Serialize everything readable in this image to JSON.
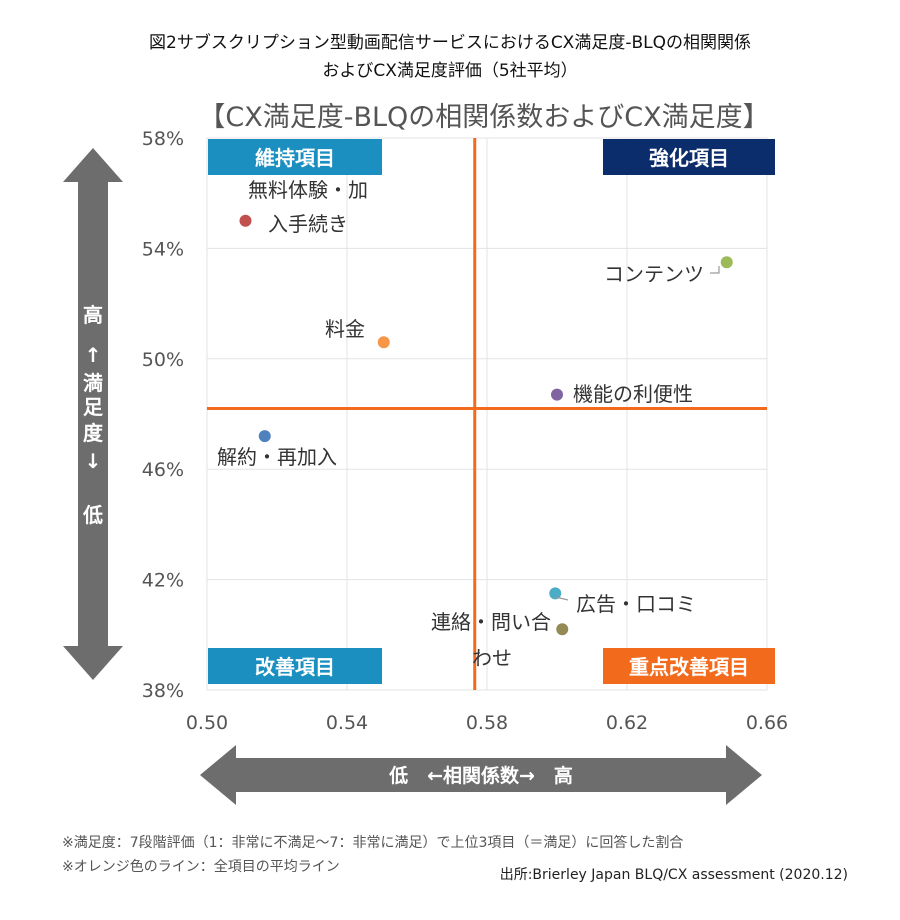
{
  "figure": {
    "title_line1": "図2サブスクリプション型動画配信サービスにおけるCX満足度-BLQの相関関係",
    "title_line2": "およびCX満足度評価（5社平均）",
    "note1": "※満足度：7段階評価（1：非常に不満足～7：非常に満足）で上位3項目（＝満足）に回答した割合",
    "note2": "※オレンジ色のライン：全項目の平均ライン",
    "source": "出所:Brierley Japan BLQ/CX assessment (2020.12)"
  },
  "colors": {
    "axis_arrow": "#6d6d6d",
    "avg_line": "#f26b1d",
    "quad_maintain": "#1b8fc0",
    "quad_strengthen": "#0c2d6b",
    "quad_improve": "#1b8fc0",
    "quad_priority": "#f26b1d",
    "grid": "#e3e3e3"
  },
  "chart_data": {
    "type": "scatter",
    "title": "【CX満足度-BLQの相関係数およびCX満足度】",
    "xlabel": "低　←相関係数→　高",
    "ylabel_chars": [
      "高",
      "↑",
      "満",
      "足",
      "度",
      "↓",
      "",
      "低"
    ],
    "xlim": [
      0.5,
      0.66
    ],
    "ylim": [
      38,
      58
    ],
    "x_ticks": [
      0.5,
      0.54,
      0.58,
      0.62,
      0.66
    ],
    "x_tick_labels": [
      "0.50",
      "0.54",
      "0.58",
      "0.62",
      "0.66"
    ],
    "y_ticks": [
      38,
      42,
      46,
      50,
      54,
      58
    ],
    "y_tick_labels": [
      "38%",
      "42%",
      "46%",
      "50%",
      "54%",
      "58%"
    ],
    "grid": true,
    "avg_x": 0.5765,
    "avg_y": 48.2,
    "quadrant_labels": {
      "top_left": "維持項目",
      "top_right": "強化項目",
      "bottom_left": "改善項目",
      "bottom_right": "重点改善項目"
    },
    "points": [
      {
        "label_lines": [
          "無料体験・加",
          "入手続き"
        ],
        "x": 0.511,
        "y": 55.0,
        "color": "#c0504d"
      },
      {
        "label_lines": [
          "コンテンツ"
        ],
        "x": 0.6485,
        "y": 53.5,
        "color": "#9bbb59"
      },
      {
        "label_lines": [
          "料金"
        ],
        "x": 0.5505,
        "y": 50.6,
        "color": "#f79646"
      },
      {
        "label_lines": [
          "機能の利便性"
        ],
        "x": 0.6,
        "y": 48.7,
        "color": "#8064a2"
      },
      {
        "label_lines": [
          "解約・再加入"
        ],
        "x": 0.5165,
        "y": 47.2,
        "color": "#4f81bd"
      },
      {
        "label_lines": [
          "広告・口コミ"
        ],
        "x": 0.5995,
        "y": 41.5,
        "color": "#4bacc6"
      },
      {
        "label_lines": [
          "連絡・問い合",
          "わせ"
        ],
        "x": 0.6015,
        "y": 40.2,
        "color": "#948a54"
      }
    ]
  }
}
